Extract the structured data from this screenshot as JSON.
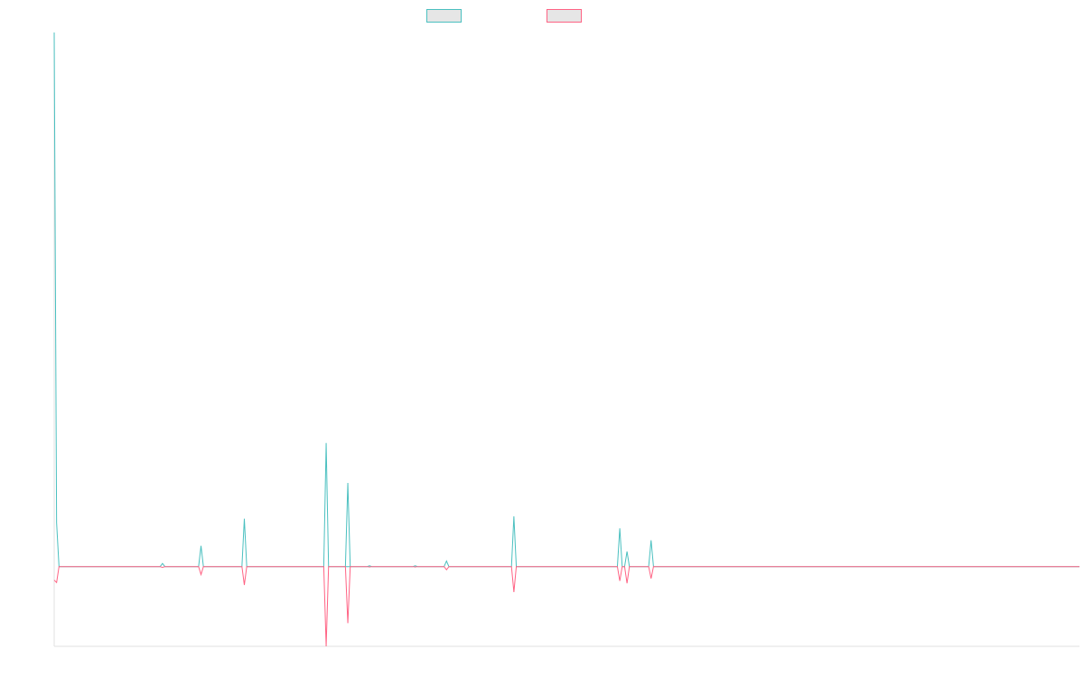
{
  "chart_data": {
    "type": "line",
    "title": "",
    "xlabel": "",
    "ylabel": "",
    "grid": false,
    "legend_position": "top-center",
    "ylim": [
      -10,
      67
    ],
    "xlim": [
      0,
      213
    ],
    "series": [
      {
        "color": "#4bc0c0",
        "points": [
          [
            0,
            67
          ],
          [
            0.5,
            5.5
          ],
          [
            1,
            0
          ],
          [
            22,
            0
          ],
          [
            22.5,
            0.4
          ],
          [
            23,
            0
          ],
          [
            30,
            0
          ],
          [
            30.5,
            2.6
          ],
          [
            31,
            0
          ],
          [
            39,
            0
          ],
          [
            39.5,
            6
          ],
          [
            40,
            0
          ],
          [
            56,
            0
          ],
          [
            56.5,
            15.5
          ],
          [
            57,
            0
          ],
          [
            60.5,
            0
          ],
          [
            61,
            10.5
          ],
          [
            61.5,
            0
          ],
          [
            58,
            0
          ],
          [
            60,
            0
          ],
          [
            65,
            0
          ],
          [
            65.5,
            0.1
          ],
          [
            66,
            0
          ],
          [
            74.5,
            0
          ],
          [
            75,
            0.1
          ],
          [
            75.5,
            0
          ],
          [
            81,
            0
          ],
          [
            81.5,
            0.7
          ],
          [
            82,
            0
          ],
          [
            95,
            0
          ],
          [
            95.5,
            6.3
          ],
          [
            96,
            0
          ],
          [
            117,
            0
          ],
          [
            117.5,
            4.8
          ],
          [
            118,
            0
          ],
          [
            118.5,
            0
          ],
          [
            119,
            1.9
          ],
          [
            119.5,
            0
          ],
          [
            123.5,
            0
          ],
          [
            124,
            3.3
          ],
          [
            124.5,
            0
          ],
          [
            213,
            0
          ]
        ]
      },
      {
        "color": "#ff6384",
        "points": [
          [
            0,
            -1.7
          ],
          [
            0.5,
            -2
          ],
          [
            1,
            0
          ],
          [
            22,
            0
          ],
          [
            22.5,
            -0.1
          ],
          [
            23,
            0
          ],
          [
            30,
            0
          ],
          [
            30.5,
            -1
          ],
          [
            31,
            0
          ],
          [
            39,
            0
          ],
          [
            39.5,
            -2.3
          ],
          [
            40,
            0
          ],
          [
            56,
            0
          ],
          [
            56.5,
            -10
          ],
          [
            57,
            0
          ],
          [
            60.5,
            0
          ],
          [
            61,
            -7.1
          ],
          [
            61.5,
            0
          ],
          [
            65,
            0
          ],
          [
            65.5,
            -0.05
          ],
          [
            66,
            0
          ],
          [
            74.5,
            0
          ],
          [
            75,
            -0.05
          ],
          [
            75.5,
            0
          ],
          [
            81,
            0
          ],
          [
            81.5,
            -0.4
          ],
          [
            82,
            0
          ],
          [
            95,
            0
          ],
          [
            95.5,
            -3.2
          ],
          [
            96,
            0
          ],
          [
            117,
            0
          ],
          [
            117.5,
            -1.8
          ],
          [
            118,
            0
          ],
          [
            118.5,
            0
          ],
          [
            119,
            -2.1
          ],
          [
            119.5,
            0
          ],
          [
            123.5,
            0
          ],
          [
            124,
            -1.5
          ],
          [
            124.5,
            0
          ],
          [
            213,
            0
          ]
        ]
      }
    ]
  }
}
